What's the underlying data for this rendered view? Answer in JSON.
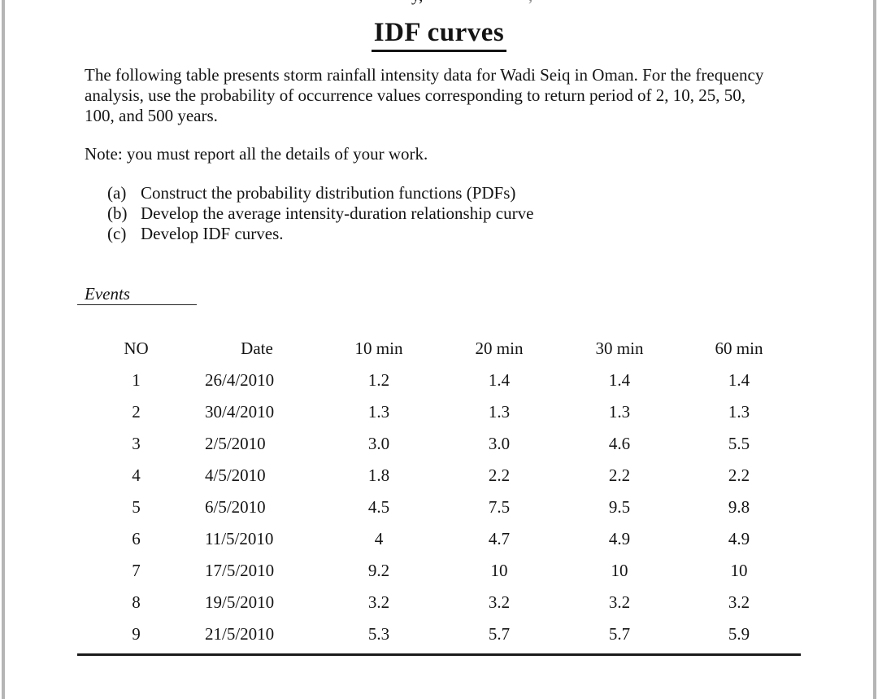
{
  "colors": {
    "text": "#141414",
    "page_edge": "#b5b5b5",
    "rule": "#1a1a1a"
  },
  "page": {
    "clipped_line_fragments": [
      "y,",
      ","
    ],
    "title": "IDF curves",
    "intro_lines": [
      "The following table presents storm rainfall intensity data for Wadi Seiq in Oman. For the frequency",
      "analysis, use the probability of occurrence values corresponding to return period of 2, 10, 25, 50,",
      "100, and 500 years."
    ],
    "note": "Note: you must report all the details of your work.",
    "tasks": [
      {
        "label": "(a)",
        "text": "Construct the probability distribution functions (PDFs)"
      },
      {
        "label": "(b)",
        "text": "Develop the average intensity-duration relationship curve"
      },
      {
        "label": "(c)",
        "text": "Develop IDF curves."
      }
    ],
    "events_caption": "Events",
    "table": {
      "headers": [
        "NO",
        "Date",
        "10 min",
        "20 min",
        "30 min",
        "60 min"
      ],
      "rows": [
        [
          "1",
          "26/4/2010",
          "1.2",
          "1.4",
          "1.4",
          "1.4"
        ],
        [
          "2",
          "30/4/2010",
          "1.3",
          "1.3",
          "1.3",
          "1.3"
        ],
        [
          "3",
          "2/5/2010",
          "3.0",
          "3.0",
          "4.6",
          "5.5"
        ],
        [
          "4",
          "4/5/2010",
          "1.8",
          "2.2",
          "2.2",
          "2.2"
        ],
        [
          "5",
          "6/5/2010",
          "4.5",
          "7.5",
          "9.5",
          "9.8"
        ],
        [
          "6",
          "11/5/2010",
          "4",
          "4.7",
          "4.9",
          "4.9"
        ],
        [
          "7",
          "17/5/2010",
          "9.2",
          "10",
          "10",
          "10"
        ],
        [
          "8",
          "19/5/2010",
          "3.2",
          "3.2",
          "3.2",
          "3.2"
        ],
        [
          "9",
          "21/5/2010",
          "5.3",
          "5.7",
          "5.7",
          "5.9"
        ]
      ]
    }
  }
}
